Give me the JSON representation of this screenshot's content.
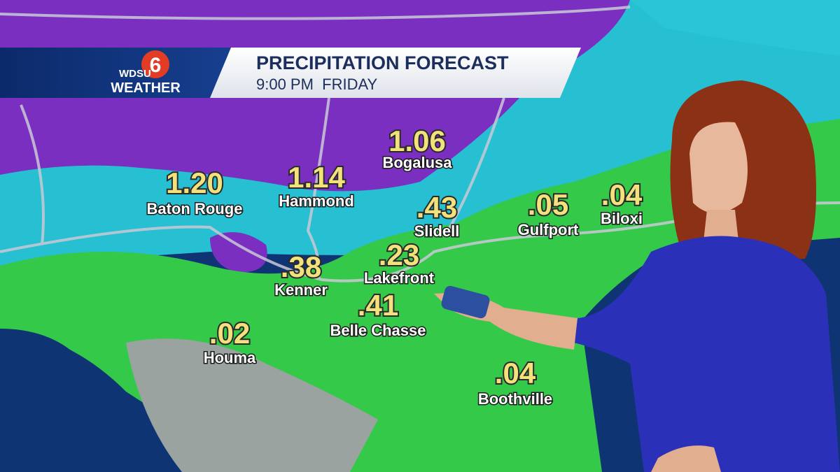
{
  "header": {
    "logo": {
      "station": "WDSU",
      "channel": "6",
      "brand": "WEATHER"
    },
    "title": "PRECIPITATION FORECAST",
    "subtitle": "9:00 PM  FRIDAY"
  },
  "locations": [
    {
      "value": "1.20",
      "name": "Baton Rouge"
    },
    {
      "value": "1.14",
      "name": "Hammond"
    },
    {
      "value": "1.06",
      "name": "Bogalusa"
    },
    {
      "value": ".43",
      "name": "Slidell"
    },
    {
      "value": ".05",
      "name": "Gulfport"
    },
    {
      "value": ".04",
      "name": "Biloxi"
    },
    {
      "value": ".23",
      "name": "Lakefront"
    },
    {
      "value": ".38",
      "name": "Kenner"
    },
    {
      "value": ".41",
      "name": "Belle Chasse"
    },
    {
      "value": ".02",
      "name": "Houma"
    },
    {
      "value": ".04",
      "name": "Boothville"
    }
  ]
}
